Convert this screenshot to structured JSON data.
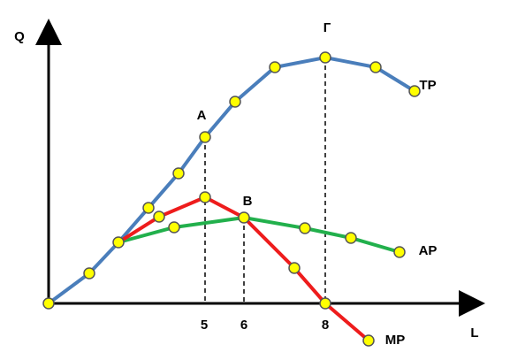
{
  "axes": {
    "y_label": "Q",
    "x_label": "L"
  },
  "curves": {
    "tp": "TP",
    "ap": "AP",
    "mp": "MP"
  },
  "points": {
    "a": "A",
    "b": "B",
    "g": "Г"
  },
  "x_ticks": [
    "5",
    "6",
    "8"
  ]
}
